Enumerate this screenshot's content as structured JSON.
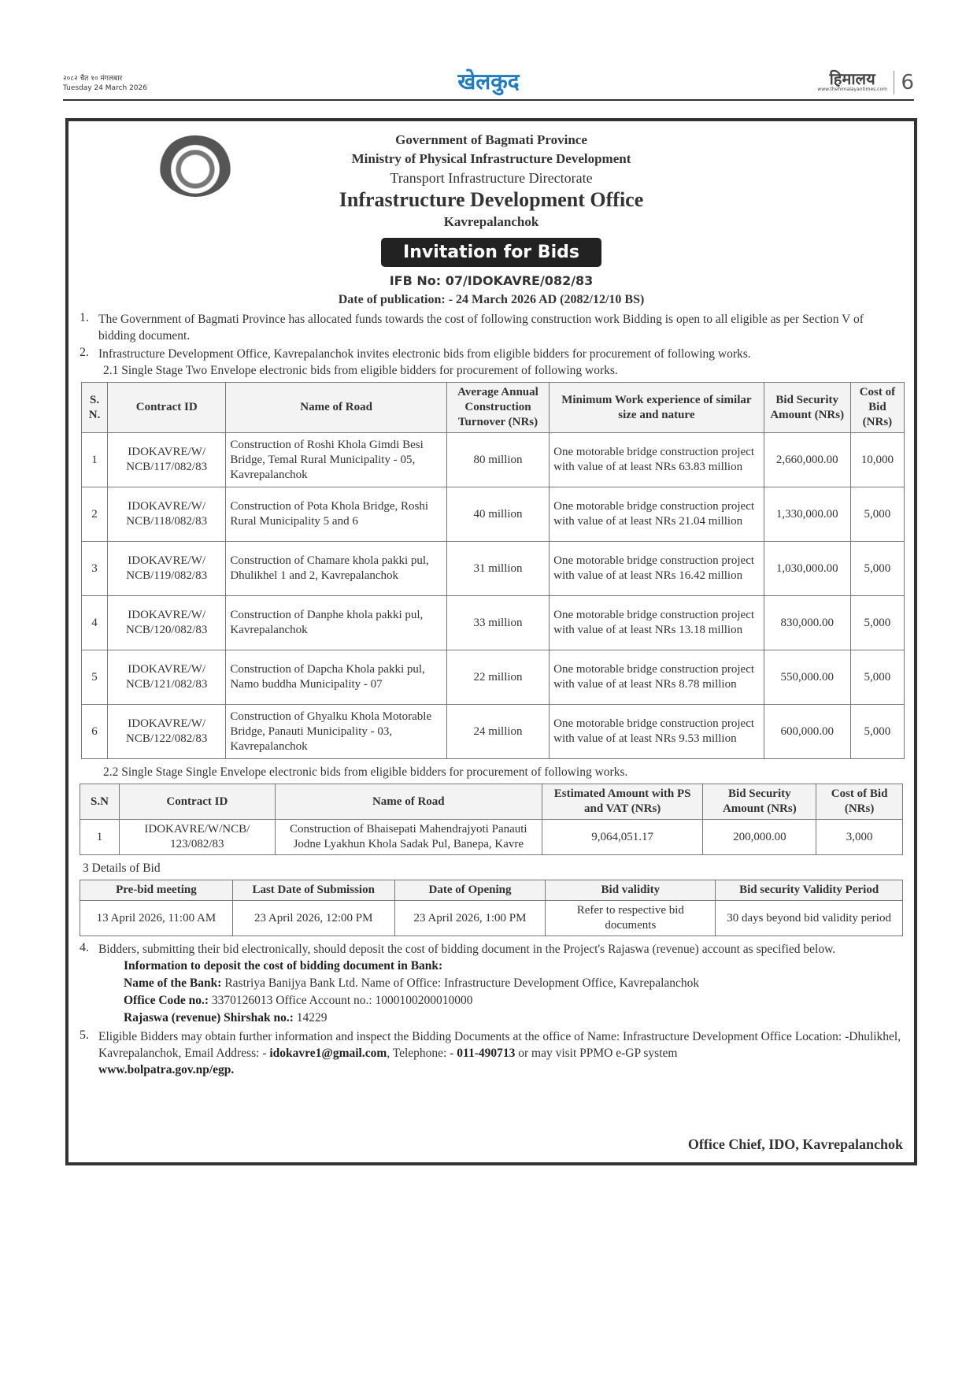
{
  "header": {
    "date_np": "२०८२ चैत १० मंगलबार",
    "date_en": "Tuesday 24 March 2026",
    "section": "खेलकुद",
    "logo": "हिमालय",
    "logo_url": "www.thehimalayantimes.com",
    "page": "6",
    "section_color": "#1f7cc0"
  },
  "notice": {
    "gov": "Government of Bagmati Province",
    "ministry": "Ministry of Physical Infrastructure Development",
    "directorate": "Transport Infrastructure Directorate",
    "office": "Infrastructure Development Office",
    "district": "Kavrepalanchok",
    "title": "Invitation for Bids",
    "ifb_no": "IFB No: 07/IDOKAVRE/082/83",
    "pub_date": "Date of publication: - 24 March 2026 AD (2082/12/10 BS)",
    "p1": "The Government of Bagmati Province has allocated funds towards the cost of following construction work Bidding is open to all eligible as per Section V of bidding document.",
    "p2": "Infrastructure Development Office, Kavrepalanchok invites electronic bids from eligible bidders for procurement of following works.",
    "p21": "2.1   Single Stage Two Envelope electronic bids from eligible bidders for procurement of following works.",
    "table1": {
      "headers": [
        "S. N.",
        "Contract ID",
        "Name of Road",
        "Average Annual Construction Turnover (NRs)",
        "Minimum Work experience of similar size and nature",
        "Bid Security Amount (NRs)",
        "Cost of Bid (NRs)"
      ],
      "rows": [
        [
          "1",
          "IDOKAVRE/W/ NCB/117/082/83",
          "Construction of Roshi Khola Gimdi Besi Bridge, Temal Rural Municipality - 05, Kavrepalanchok",
          "80 million",
          "One motorable bridge construction project with value of at least NRs 63.83 million",
          "2,660,000.00",
          "10,000"
        ],
        [
          "2",
          "IDOKAVRE/W/ NCB/118/082/83",
          "Construction of Pota Khola Bridge, Roshi Rural Municipality 5 and 6",
          "40 million",
          "One motorable bridge construction project with value of at least NRs 21.04 million",
          "1,330,000.00",
          "5,000"
        ],
        [
          "3",
          "IDOKAVRE/W/ NCB/119/082/83",
          "Construction of Chamare khola pakki pul, Dhulikhel 1 and 2, Kavrepalanchok",
          "31 million",
          "One motorable bridge construction project with value of at least NRs 16.42 million",
          "1,030,000.00",
          "5,000"
        ],
        [
          "4",
          "IDOKAVRE/W/ NCB/120/082/83",
          "Construction of Danphe khola pakki pul, Kavrepalanchok",
          "33 million",
          "One motorable bridge construction project with value of at least NRs 13.18 million",
          "830,000.00",
          "5,000"
        ],
        [
          "5",
          "IDOKAVRE/W/ NCB/121/082/83",
          "Construction of Dapcha Khola pakki pul, Namo buddha Municipality - 07",
          "22 million",
          "One motorable bridge construction project with value of at least NRs 8.78 million",
          "550,000.00",
          "5,000"
        ],
        [
          "6",
          "IDOKAVRE/W/ NCB/122/082/83",
          "Construction of Ghyalku Khola Motorable Bridge, Panauti Municipality - 03, Kavrepalanchok",
          "24 million",
          "One motorable bridge construction project with value of at least NRs 9.53 million",
          "600,000.00",
          "5,000"
        ]
      ]
    },
    "p22": "2.2   Single Stage Single Envelope electronic bids from eligible bidders for procurement of following works.",
    "table2": {
      "headers": [
        "S.N",
        "Contract ID",
        "Name of Road",
        "Estimated Amount with PS and VAT (NRs)",
        "Bid Security Amount (NRs)",
        "Cost of Bid (NRs)"
      ],
      "rows": [
        [
          "1",
          "IDOKAVRE/W/NCB/ 123/082/83",
          "Construction of Bhaisepati Mahendrajyoti Panauti Jodne Lyakhun Khola Sadak Pul, Banepa, Kavre",
          "9,064,051.17",
          "200,000.00",
          "3,000"
        ]
      ]
    },
    "p3": "3   Details of Bid",
    "table3": {
      "headers": [
        "Pre-bid meeting",
        "Last Date of Submission",
        "Date of Opening",
        "Bid validity",
        "Bid security Validity Period"
      ],
      "rows": [
        [
          "13 April 2026, 11:00 AM",
          "23 April 2026, 12:00 PM",
          "23 April 2026, 1:00 PM",
          "Refer to respective bid documents",
          "30 days beyond bid validity period"
        ]
      ]
    },
    "p4": "Bidders, submitting their bid electronically, should deposit the cost of bidding document in the Project's Rajaswa (revenue) account as specified below.",
    "bank": {
      "heading": "Information to deposit the cost of bidding document in Bank:",
      "bank_label": "Name of the Bank:",
      "bank_value": " Rastriya Banijya Bank Ltd. Name of Office: Infrastructure Development Office, Kavrepalanchok",
      "code_label": "Office Code no.:",
      "code_value": " 3370126013 Office Account no.: 1000100200010000",
      "shirshak_label": "Rajaswa (revenue) Shirshak no.:",
      "shirshak_value": " 14229"
    },
    "p5a": "Eligible Bidders may obtain further information and inspect the Bidding Documents at the office of Name: Infrastructure Development Office Location: -Dhulikhel, Kavrepalanchok, Email Address: - ",
    "email": "idokavre1@gmail.com",
    "p5b": ", Telephone: - ",
    "phone": "011-490713",
    "p5c": " or may visit PPMO e-GP system ",
    "website": "www.bolpatra.gov.np/egp.",
    "signature": "Office Chief, IDO, Kavrepalanchok"
  }
}
